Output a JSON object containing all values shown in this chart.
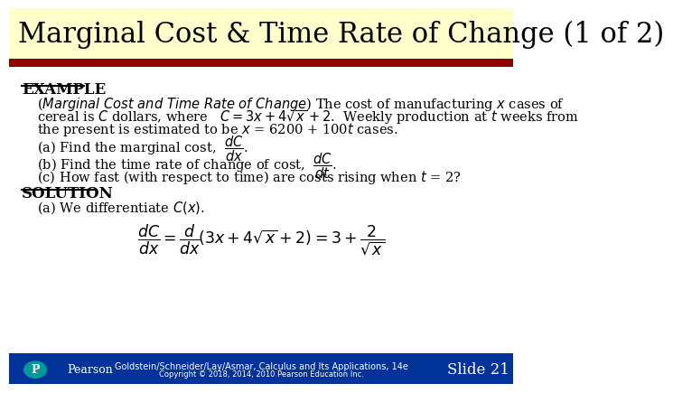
{
  "title": "Marginal Cost & Time Rate of Change (1 of 2)",
  "title_bg": "#ffffcc",
  "title_color": "#000000",
  "title_fontsize": 22,
  "red_bar_color": "#8B0000",
  "body_bg": "#ffffff",
  "footer_bg": "#003399",
  "footer_text1": "Goldstein/Schneider/Lay/Asmar, Calculus and Its Applications, 14e",
  "footer_text2": "Copyright © 2018, 2014, 2010 Pearson Education Inc.",
  "footer_slide": "Slide 21",
  "teal_color": "#009999"
}
